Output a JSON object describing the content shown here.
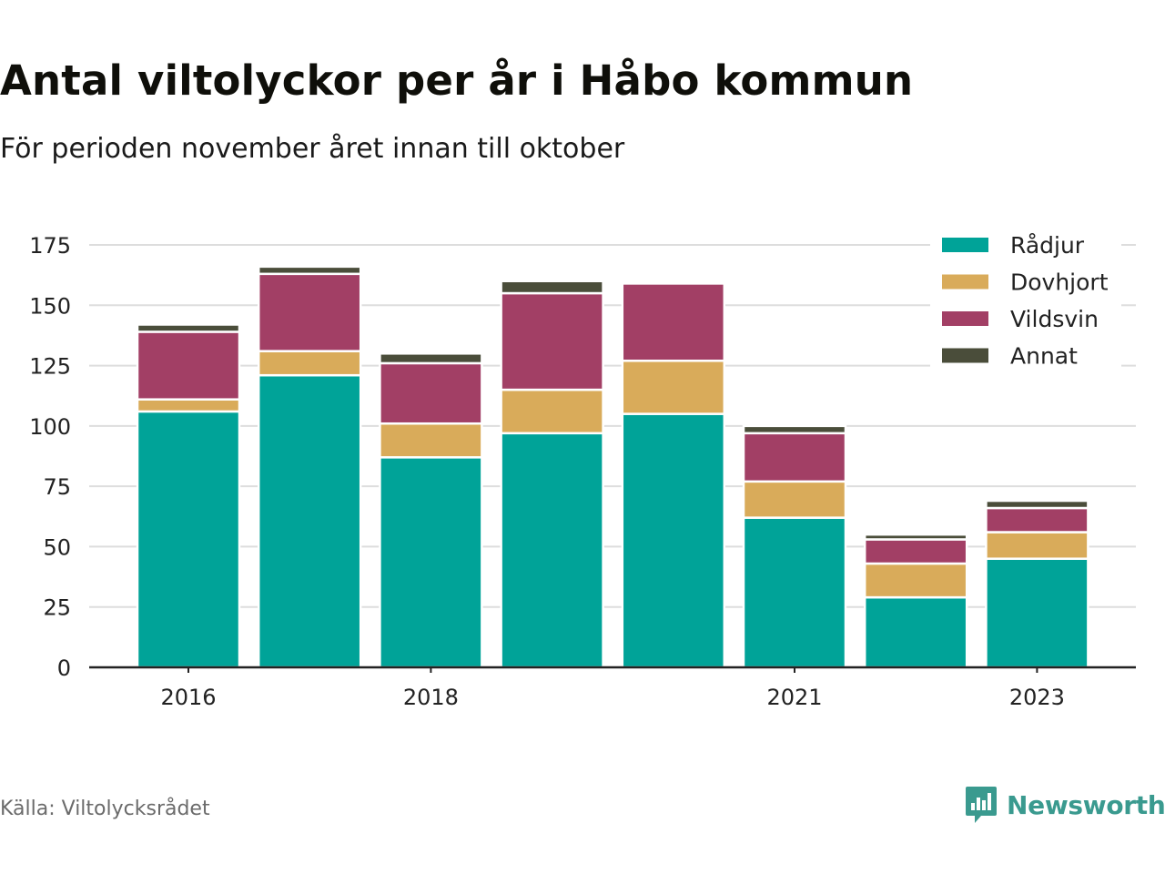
{
  "title": "Antal viltolyckor per år i Håbo kommun",
  "subtitle": "För perioden november året innan till oktober",
  "source": "Källa: Viltolycksrådet",
  "brand": {
    "name": "Newsworthy",
    "icon": "newsworthy-bar-chart-icon"
  },
  "colors": {
    "Rådjur": "#00a398",
    "Dovhjort": "#d9ab5a",
    "Vildsvin": "#a23f65",
    "Annat": "#4a4d3a",
    "grid": "#dddddd",
    "axis": "#222222",
    "brand": "#3a9a8f"
  },
  "chart_data": {
    "type": "bar",
    "stacked": true,
    "categories": [
      2016,
      2017,
      2018,
      2019,
      2020,
      2021,
      2022,
      2023
    ],
    "x_tick_labels": [
      "2016",
      "2018",
      "2021",
      "2023"
    ],
    "series": [
      {
        "name": "Rådjur",
        "values": [
          106,
          121,
          87,
          97,
          105,
          62,
          29,
          45
        ]
      },
      {
        "name": "Dovhjort",
        "values": [
          5,
          10,
          14,
          18,
          22,
          15,
          14,
          11
        ]
      },
      {
        "name": "Vildsvin",
        "values": [
          28,
          32,
          25,
          40,
          32,
          20,
          10,
          10
        ]
      },
      {
        "name": "Annat",
        "values": [
          3,
          3,
          4,
          5,
          0,
          3,
          2,
          3
        ]
      }
    ],
    "ylim": [
      0,
      175
    ],
    "yticks": [
      0,
      25,
      50,
      75,
      100,
      125,
      150,
      175
    ],
    "xlabel": "",
    "ylabel": "",
    "grid": true,
    "legend": "top-right"
  }
}
